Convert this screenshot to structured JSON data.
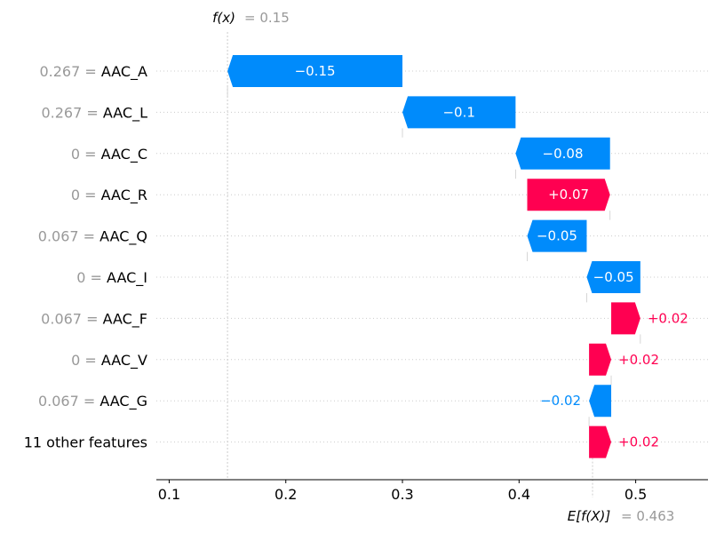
{
  "chart_data": {
    "type": "waterfall",
    "fx_label": "f(x)",
    "fx_value": 0.15,
    "fx_value_text": "= 0.15",
    "ex_label": "E[f(X)]",
    "ex_value": 0.463,
    "ex_value_text": "= 0.463",
    "xlim": [
      0.089,
      0.562
    ],
    "xticks": [
      0.1,
      0.2,
      0.3,
      0.4,
      0.5
    ],
    "xtick_labels": [
      "0.1",
      "0.2",
      "0.3",
      "0.4",
      "0.5"
    ],
    "features": [
      {
        "value_text": "0.267",
        "name": "AAC_A",
        "contribution": -0.15,
        "label": "−0.15",
        "label_inside": true,
        "start": 0.3,
        "end": 0.15
      },
      {
        "value_text": "0.267",
        "name": "AAC_L",
        "contribution": -0.1,
        "label": "−0.1",
        "label_inside": true,
        "start": 0.397,
        "end": 0.3
      },
      {
        "value_text": "0",
        "name": "AAC_C",
        "contribution": -0.08,
        "label": "−0.08",
        "label_inside": true,
        "start": 0.478,
        "end": 0.397
      },
      {
        "value_text": "0",
        "name": "AAC_R",
        "contribution": 0.07,
        "label": "+0.07",
        "label_inside": true,
        "start": 0.407,
        "end": 0.478
      },
      {
        "value_text": "0.067",
        "name": "AAC_Q",
        "contribution": -0.05,
        "label": "−0.05",
        "label_inside": true,
        "start": 0.458,
        "end": 0.407
      },
      {
        "value_text": "0",
        "name": "AAC_I",
        "contribution": -0.05,
        "label": "−0.05",
        "label_inside": true,
        "start": 0.504,
        "end": 0.458
      },
      {
        "value_text": "0.067",
        "name": "AAC_F",
        "contribution": 0.02,
        "label": "+0.02",
        "label_inside": false,
        "start": 0.479,
        "end": 0.504
      },
      {
        "value_text": "0",
        "name": "AAC_V",
        "contribution": 0.02,
        "label": "+0.02",
        "label_inside": false,
        "start": 0.46,
        "end": 0.479
      },
      {
        "value_text": "0.067",
        "name": "AAC_G",
        "contribution": -0.02,
        "label": "−0.02",
        "label_inside": false,
        "start": 0.479,
        "end": 0.46
      },
      {
        "value_text": "",
        "name": "11 other features",
        "contribution": 0.02,
        "label": "+0.02",
        "label_inside": false,
        "start": 0.46,
        "end": 0.479
      }
    ],
    "colors": {
      "positive": "#ff0051",
      "negative": "#008bfb",
      "muted": "#999999",
      "grid": "#cccccc"
    },
    "grid": true
  }
}
